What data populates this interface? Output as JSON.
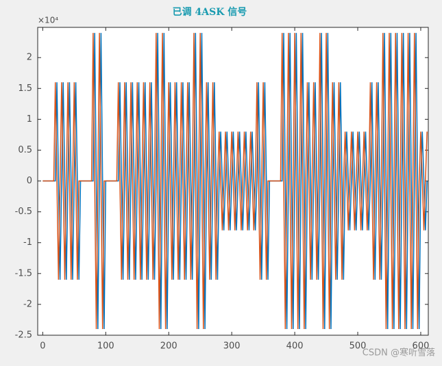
{
  "chart_data": {
    "type": "line",
    "title": "已调 4ASK 信号",
    "y_multiplier": "×10⁴",
    "watermark": "CSDN @寒听雪落",
    "xlim": [
      -8,
      612
    ],
    "ylim": [
      -25000,
      24900
    ],
    "xticks": [
      0,
      100,
      200,
      300,
      400,
      500,
      600
    ],
    "yticks": [
      {
        "value": -25000,
        "label": "-2.5"
      },
      {
        "value": -20000,
        "label": "-2"
      },
      {
        "value": -15000,
        "label": "-1.5"
      },
      {
        "value": -10000,
        "label": "-1"
      },
      {
        "value": -5000,
        "label": "-0.5"
      },
      0,
      {
        "value": 5000,
        "label": "0.5"
      },
      {
        "value": 10000,
        "label": "1"
      },
      {
        "value": 15000,
        "label": "1.5"
      },
      {
        "value": 20000,
        "label": "2"
      }
    ],
    "x": [
      0,
      2.5,
      5,
      7.5,
      10,
      12.5,
      15,
      17.5,
      20,
      22.5,
      25,
      27.5,
      30,
      32.5,
      35,
      37.5,
      40,
      42.5,
      45,
      47.5,
      50,
      52.5,
      55,
      57.5,
      60,
      62.5,
      65,
      67.5,
      70,
      72.5,
      75,
      77.5,
      80,
      82.5,
      85,
      87.5,
      90,
      92.5,
      95,
      97.5,
      100,
      102.5,
      105,
      107.5,
      110,
      112.5,
      115,
      117.5,
      120,
      122.5,
      125,
      127.5,
      130,
      132.5,
      135,
      137.5,
      140,
      142.5,
      145,
      147.5,
      150,
      152.5,
      155,
      157.5,
      160,
      162.5,
      165,
      167.5,
      170,
      172.5,
      175,
      177.5,
      180,
      182.5,
      185,
      187.5,
      190,
      192.5,
      195,
      197.5,
      200,
      202.5,
      205,
      207.5,
      210,
      212.5,
      215,
      217.5,
      220,
      222.5,
      225,
      227.5,
      230,
      232.5,
      235,
      237.5,
      240,
      242.5,
      245,
      247.5,
      250,
      252.5,
      255,
      257.5,
      260,
      262.5,
      265,
      267.5,
      270,
      272.5,
      275,
      277.5,
      280,
      282.5,
      285,
      287.5,
      290,
      292.5,
      295,
      297.5,
      300,
      302.5,
      305,
      307.5,
      310,
      312.5,
      315,
      317.5,
      320,
      322.5,
      325,
      327.5,
      330,
      332.5,
      335,
      337.5,
      340,
      342.5,
      345,
      347.5,
      350,
      352.5,
      355,
      357.5,
      360,
      362.5,
      365,
      367.5,
      370,
      372.5,
      375,
      377.5,
      380,
      382.5,
      385,
      387.5,
      390,
      392.5,
      395,
      397.5,
      400,
      402.5,
      405,
      407.5,
      410,
      412.5,
      415,
      417.5,
      420,
      422.5,
      425,
      427.5,
      430,
      432.5,
      435,
      437.5,
      440,
      442.5,
      445,
      447.5,
      450,
      452.5,
      455,
      457.5,
      460,
      462.5,
      465,
      467.5,
      470,
      472.5,
      475,
      477.5,
      480,
      482.5,
      485,
      487.5,
      490,
      492.5,
      495,
      497.5,
      500,
      502.5,
      505,
      507.5,
      510,
      512.5,
      515,
      517.5,
      520,
      522.5,
      525,
      527.5,
      530,
      532.5,
      535,
      537.5,
      540,
      542.5,
      545,
      547.5,
      550,
      552.5,
      555,
      557.5,
      560,
      562.5,
      565,
      567.5,
      570,
      572.5,
      575,
      577.5,
      580,
      582.5,
      585,
      587.5,
      590,
      592.5,
      595,
      597.5,
      600,
      602.5,
      605,
      607.5,
      610
    ],
    "series": [
      {
        "color": "#0072bd",
        "values": [
          0,
          0,
          0,
          0,
          0,
          0,
          0,
          0,
          0,
          16000,
          0,
          -16000,
          0,
          16000,
          0,
          -16000,
          0,
          16000,
          0,
          -16000,
          0,
          16000,
          0,
          -16000,
          0,
          0,
          0,
          0,
          0,
          0,
          0,
          0,
          0,
          24000,
          0,
          -24000,
          0,
          24000,
          0,
          -24000,
          0,
          0,
          0,
          0,
          0,
          0,
          0,
          0,
          0,
          16000,
          0,
          -16000,
          0,
          16000,
          0,
          -16000,
          0,
          16000,
          0,
          -16000,
          0,
          16000,
          0,
          -16000,
          0,
          16000,
          0,
          -16000,
          0,
          16000,
          0,
          -16000,
          0,
          24000,
          0,
          -24000,
          0,
          24000,
          0,
          -24000,
          0,
          16000,
          0,
          -16000,
          0,
          16000,
          0,
          -16000,
          0,
          16000,
          0,
          -16000,
          0,
          16000,
          0,
          -16000,
          0,
          24000,
          0,
          -24000,
          0,
          24000,
          0,
          -24000,
          0,
          16000,
          0,
          -16000,
          0,
          16000,
          0,
          -16000,
          0,
          8000,
          0,
          -8000,
          0,
          8000,
          0,
          -8000,
          0,
          8000,
          0,
          -8000,
          0,
          8000,
          0,
          -8000,
          0,
          8000,
          0,
          -8000,
          0,
          8000,
          0,
          -8000,
          0,
          16000,
          0,
          -16000,
          0,
          16000,
          0,
          -16000,
          0,
          0,
          0,
          0,
          0,
          0,
          0,
          0,
          0,
          24000,
          0,
          -24000,
          0,
          24000,
          0,
          -24000,
          0,
          24000,
          0,
          -24000,
          0,
          24000,
          0,
          -24000,
          0,
          16000,
          0,
          -16000,
          0,
          16000,
          0,
          -16000,
          0,
          24000,
          0,
          -24000,
          0,
          24000,
          0,
          -24000,
          0,
          16000,
          0,
          -16000,
          0,
          16000,
          0,
          -16000,
          0,
          8000,
          0,
          -8000,
          0,
          8000,
          0,
          -8000,
          0,
          8000,
          0,
          -8000,
          0,
          8000,
          0,
          -8000,
          0,
          16000,
          0,
          -16000,
          0,
          16000,
          0,
          -16000,
          0,
          24000,
          0,
          -24000,
          0,
          24000,
          0,
          -24000,
          0,
          24000,
          0,
          -24000,
          0,
          24000,
          0,
          -24000,
          0,
          24000,
          0,
          -24000,
          0,
          24000,
          0,
          -24000,
          0,
          8000,
          0,
          -8000,
          0
        ]
      },
      {
        "color": "#d95319",
        "values": [
          0,
          0,
          0,
          0,
          0,
          0,
          0,
          0,
          16000,
          0,
          -16000,
          0,
          16000,
          0,
          -16000,
          0,
          16000,
          0,
          -16000,
          0,
          16000,
          0,
          -16000,
          0,
          0,
          0,
          0,
          0,
          0,
          0,
          0,
          0,
          24000,
          0,
          -24000,
          0,
          24000,
          0,
          -24000,
          0,
          0,
          0,
          0,
          0,
          0,
          0,
          0,
          0,
          16000,
          0,
          -16000,
          0,
          16000,
          0,
          -16000,
          0,
          16000,
          0,
          -16000,
          0,
          16000,
          0,
          -16000,
          0,
          16000,
          0,
          -16000,
          0,
          16000,
          0,
          -16000,
          0,
          24000,
          0,
          -24000,
          0,
          24000,
          0,
          -24000,
          0,
          16000,
          0,
          -16000,
          0,
          16000,
          0,
          -16000,
          0,
          16000,
          0,
          -16000,
          0,
          16000,
          0,
          -16000,
          0,
          24000,
          0,
          -24000,
          0,
          24000,
          0,
          -24000,
          0,
          16000,
          0,
          -16000,
          0,
          16000,
          0,
          -16000,
          0,
          8000,
          0,
          -8000,
          0,
          8000,
          0,
          -8000,
          0,
          8000,
          0,
          -8000,
          0,
          8000,
          0,
          -8000,
          0,
          8000,
          0,
          -8000,
          0,
          8000,
          0,
          -8000,
          0,
          16000,
          0,
          -16000,
          0,
          16000,
          0,
          -16000,
          0,
          0,
          0,
          0,
          0,
          0,
          0,
          0,
          0,
          24000,
          0,
          -24000,
          0,
          24000,
          0,
          -24000,
          0,
          24000,
          0,
          -24000,
          0,
          24000,
          0,
          -24000,
          0,
          16000,
          0,
          -16000,
          0,
          16000,
          0,
          -16000,
          0,
          24000,
          0,
          -24000,
          0,
          24000,
          0,
          -24000,
          0,
          16000,
          0,
          -16000,
          0,
          16000,
          0,
          -16000,
          0,
          8000,
          0,
          -8000,
          0,
          8000,
          0,
          -8000,
          0,
          8000,
          0,
          -8000,
          0,
          8000,
          0,
          -8000,
          0,
          16000,
          0,
          -16000,
          0,
          16000,
          0,
          -16000,
          0,
          24000,
          0,
          -24000,
          0,
          24000,
          0,
          -24000,
          0,
          24000,
          0,
          -24000,
          0,
          24000,
          0,
          -24000,
          0,
          24000,
          0,
          -24000,
          0,
          24000,
          0,
          -24000,
          0,
          8000,
          0,
          -8000,
          0,
          8000
        ]
      }
    ]
  }
}
